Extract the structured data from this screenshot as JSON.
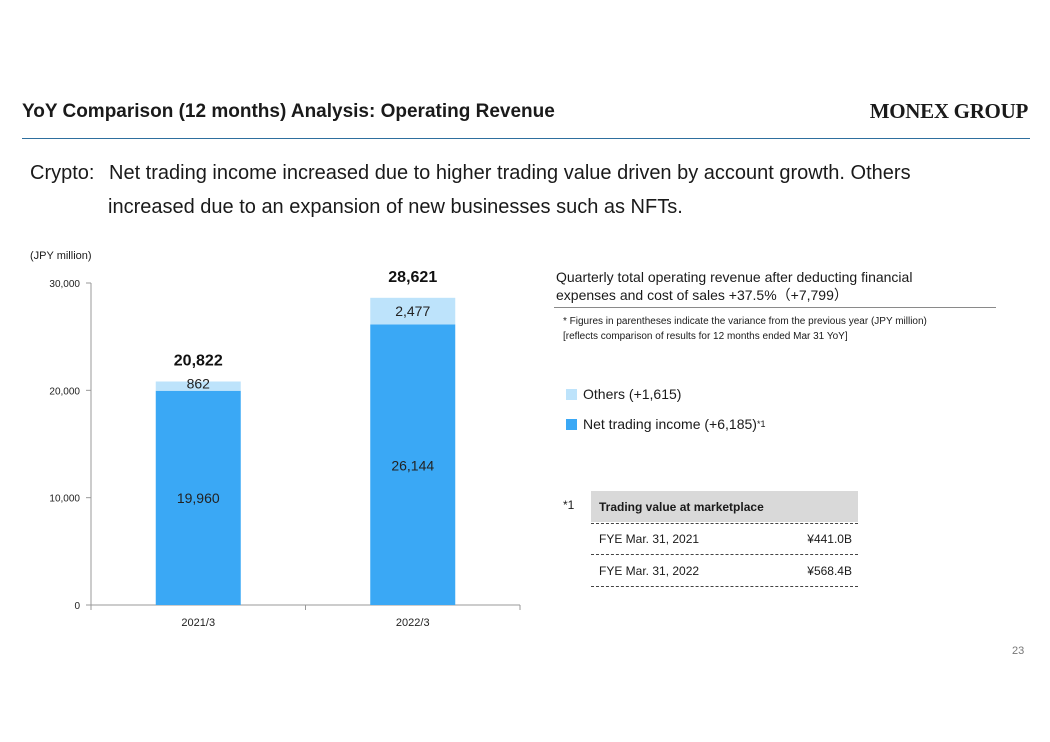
{
  "header": {
    "title": "YoY Comparison (12 months) Analysis: Operating Revenue",
    "logo": "MONEX GROUP"
  },
  "summary": {
    "label": "Crypto:",
    "line1": "Net trading income increased due to higher trading value driven by account growth. Others",
    "line2": "increased due to an expansion of new businesses such as NFTs."
  },
  "chart_data": {
    "type": "bar",
    "stacked": true,
    "ylabel": "(JPY million)",
    "ylim": [
      0,
      30000
    ],
    "yticks": [
      0,
      10000,
      20000,
      30000
    ],
    "ytick_labels": [
      "0",
      "10,000",
      "20,000",
      "30,000"
    ],
    "categories": [
      "2021/3",
      "2022/3"
    ],
    "series": [
      {
        "values": [
          19960,
          26144
        ],
        "labels": [
          "19,960",
          "26,144"
        ],
        "color": "#3aa8f5"
      },
      {
        "values": [
          862,
          2477
        ],
        "labels": [
          "862",
          "2,477"
        ],
        "color": "#bde3fb"
      }
    ],
    "totals": [
      20822,
      28621
    ],
    "total_labels": [
      "20,822",
      "28,621"
    ],
    "grid": false
  },
  "right_panel": {
    "title_line1": "Quarterly total operating revenue after deducting financial",
    "title_line2": "expenses and cost of sales +37.5%（+7,799）",
    "note_line1": "* Figures in parentheses indicate the variance from the previous year (JPY million)",
    "note_line2": "[reflects comparison of results for 12 months ended Mar 31 YoY]",
    "legend": [
      {
        "label": "Others (+1,615)",
        "color": "#bde3fb"
      },
      {
        "label": "Net trading income (+6,185)",
        "sup": "*1",
        "color": "#3aa8f5"
      }
    ]
  },
  "footnote_table": {
    "mark": "*1",
    "header": "Trading value at marketplace",
    "rows": [
      {
        "period": "FYE Mar. 31, 2021",
        "value": "¥441.0B"
      },
      {
        "period": "FYE Mar. 31, 2022",
        "value": "¥568.4B"
      }
    ]
  },
  "page_number": "23"
}
